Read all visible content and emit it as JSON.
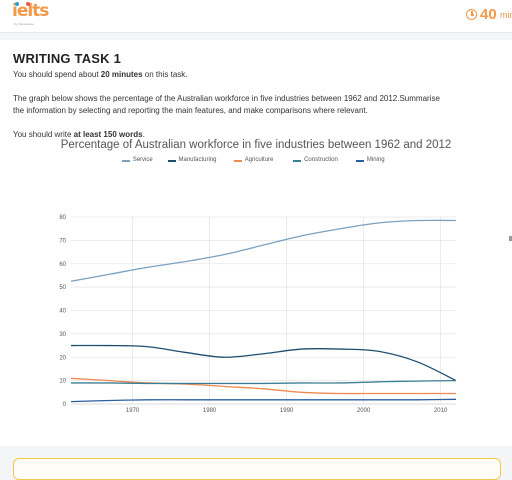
{
  "header": {
    "logo_text": "ielts",
    "logo_sub": "by Vietnamese",
    "timer_value": "40",
    "timer_unit": "mins"
  },
  "task": {
    "title": "WRITING TASK 1",
    "time_prefix": "You should spend about ",
    "time_bold": "20 minutes",
    "time_suffix": " on this task.",
    "prompt_line1": "The graph below shows the percentage of the Australian workforce in five industries between 1962 and 2012.Summarise",
    "prompt_line2": "the information by selecting and reporting the main features, and make comparisons where relevant.",
    "words_prefix": "You should write ",
    "words_bold": "at least 150 words",
    "words_suffix": "."
  },
  "chart_data": {
    "type": "line",
    "title": "Percentage of Australian workforce in five industries between 1962 and 2012",
    "xlabel": "",
    "ylabel": "",
    "xlim": [
      1962,
      2012
    ],
    "ylim": [
      0,
      80
    ],
    "x_ticks": [
      1970,
      1980,
      1990,
      2000,
      2010
    ],
    "y_ticks": [
      0,
      10,
      20,
      30,
      40,
      50,
      60,
      70,
      80
    ],
    "grid": true,
    "legend_position": "top-center",
    "x": [
      1962,
      1967,
      1972,
      1977,
      1982,
      1987,
      1992,
      1997,
      2002,
      2007,
      2012
    ],
    "series": [
      {
        "name": "Service",
        "color": "#7aa1bf",
        "values": [
          52.5,
          55.5,
          58.5,
          61.0,
          64.0,
          68.0,
          72.0,
          75.0,
          77.5,
          78.5,
          78.5
        ]
      },
      {
        "name": "Manufacturing",
        "color": "#1d4e6e",
        "values": [
          25.0,
          25.0,
          24.5,
          22.0,
          20.0,
          21.5,
          23.5,
          23.5,
          22.5,
          18.0,
          10.0
        ]
      },
      {
        "name": "Agriculture",
        "color": "#ed8a4e",
        "values": [
          11.0,
          10.0,
          9.0,
          8.5,
          7.5,
          6.5,
          5.0,
          4.5,
          4.5,
          4.5,
          4.5
        ]
      },
      {
        "name": "Construction",
        "color": "#3c7f94",
        "values": [
          9.0,
          9.0,
          8.8,
          8.8,
          8.8,
          8.8,
          9.0,
          9.0,
          9.5,
          9.8,
          10.0
        ]
      },
      {
        "name": "Mining",
        "color": "#2a5f9e",
        "values": [
          1.0,
          1.5,
          1.8,
          1.8,
          1.8,
          1.8,
          1.8,
          1.8,
          1.8,
          1.8,
          2.0
        ]
      }
    ]
  }
}
